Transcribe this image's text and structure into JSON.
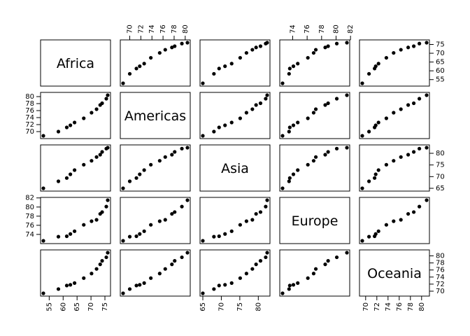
{
  "chart_data": {
    "type": "scatter",
    "kind": "pairs-scatterplot-matrix",
    "title": "",
    "variables": [
      "Africa",
      "Americas",
      "Asia",
      "Europe",
      "Oceania"
    ],
    "x": [
      52.9,
      58.3,
      61.3,
      62.6,
      64.1,
      67.4,
      70.2,
      72.0,
      73.3,
      74.0,
      75.5,
      76.0
    ],
    "series": [
      {
        "name": "Africa",
        "values": [
          52.9,
          58.3,
          61.3,
          62.6,
          64.1,
          67.4,
          70.2,
          72.0,
          73.3,
          74.0,
          75.5,
          76.0
        ]
      },
      {
        "name": "Americas",
        "values": [
          68.8,
          70.0,
          71.2,
          71.8,
          72.6,
          73.8,
          75.4,
          76.4,
          77.6,
          78.1,
          79.4,
          80.4
        ]
      },
      {
        "name": "Asia",
        "values": [
          65.0,
          68.0,
          69.4,
          71.0,
          72.8,
          75.1,
          76.8,
          78.4,
          79.4,
          80.6,
          82.0,
          82.4
        ]
      },
      {
        "name": "Europe",
        "values": [
          72.6,
          73.5,
          73.6,
          74.1,
          74.7,
          76.1,
          76.9,
          77.2,
          78.5,
          78.9,
          80.1,
          81.5
        ]
      },
      {
        "name": "Oceania",
        "values": [
          69.4,
          70.6,
          71.6,
          71.8,
          72.3,
          73.7,
          75.0,
          76.3,
          77.6,
          78.6,
          79.6,
          80.9
        ]
      }
    ],
    "ticks": {
      "Africa": [
        55,
        60,
        65,
        70,
        75
      ],
      "Americas": [
        70,
        72,
        74,
        76,
        78,
        80
      ],
      "Asia": [
        65,
        70,
        75,
        80
      ],
      "Europe": [
        74,
        76,
        78,
        80,
        82
      ],
      "Oceania": [
        70,
        72,
        74,
        76,
        78,
        80
      ]
    },
    "tick_text": {
      "Africa": [
        "55",
        "60",
        "65",
        "70",
        "75"
      ],
      "Americas": [
        "70",
        "72",
        "74",
        "76",
        "78",
        "80"
      ],
      "Asia": [
        "65",
        "70",
        "75",
        "80"
      ],
      "Europe": [
        "74",
        "76",
        "78",
        "80",
        "82"
      ],
      "Oceania": [
        "70",
        "72",
        "74",
        "76",
        "78",
        "80"
      ]
    },
    "grid": false,
    "legend": "none"
  }
}
